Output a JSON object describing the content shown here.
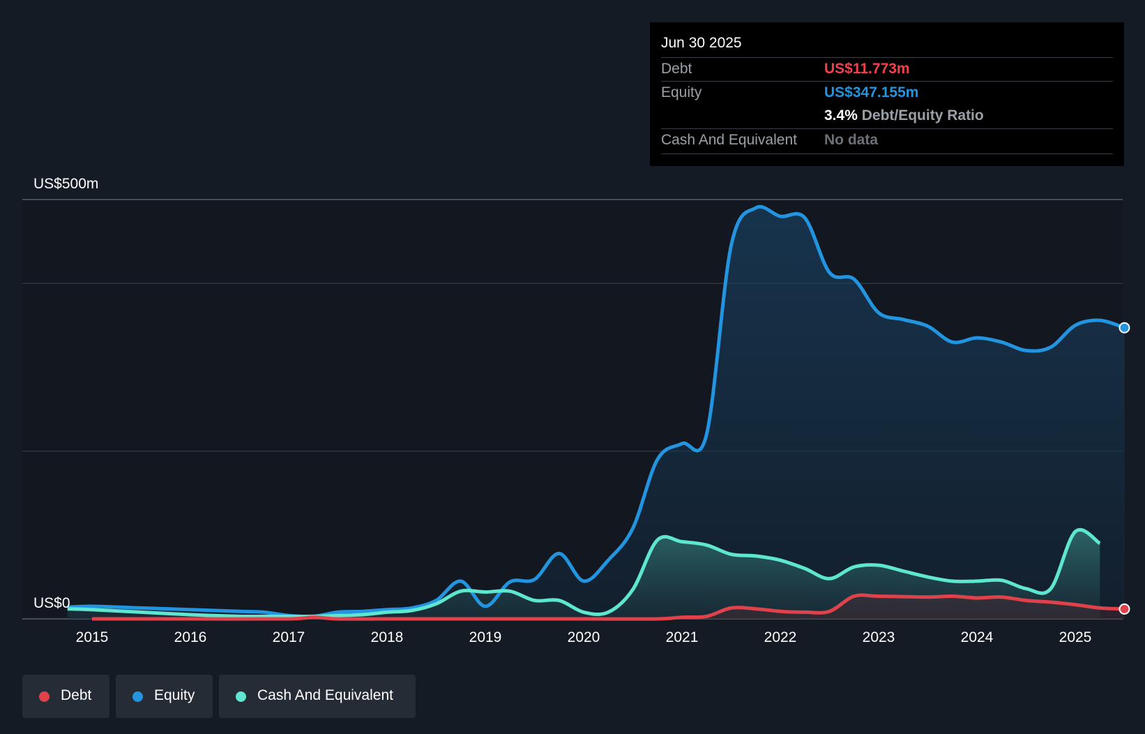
{
  "tooltip": {
    "date": "Jun 30 2025",
    "debt_label": "Debt",
    "debt_value": "US$11.773m",
    "equity_label": "Equity",
    "equity_value": "US$347.155m",
    "ratio_value": "3.4%",
    "ratio_label": "Debt/Equity Ratio",
    "cash_label": "Cash And Equivalent",
    "cash_value": "No data"
  },
  "legend": {
    "debt": "Debt",
    "equity": "Equity",
    "cash": "Cash And Equivalent"
  },
  "colors": {
    "background": "#151b24",
    "debt": "#e0424b",
    "equity": "#2394df",
    "cash": "#5ee6d0",
    "value_debt": "#f0424b",
    "value_equity": "#2394df"
  },
  "chart_data": {
    "type": "area",
    "title": "",
    "xlabel": "",
    "ylabel": "",
    "y_top_label": "US$500m",
    "y_bottom_label": "US$0",
    "ylim": [
      0,
      500
    ],
    "xlim": [
      2014.75,
      2025.5
    ],
    "x_ticks": [
      2015,
      2016,
      2017,
      2018,
      2019,
      2020,
      2021,
      2022,
      2023,
      2024,
      2025
    ],
    "x_tick_labels": [
      "2015",
      "2016",
      "2017",
      "2018",
      "2019",
      "2020",
      "2021",
      "2022",
      "2023",
      "2024",
      "2025"
    ],
    "grid_values": [
      0,
      200,
      400,
      500
    ],
    "legend_position": "bottom-left",
    "series": [
      {
        "name": "Equity",
        "points": [
          [
            2014.75,
            14
          ],
          [
            2015,
            15
          ],
          [
            2015.5,
            13
          ],
          [
            2016,
            11
          ],
          [
            2016.5,
            9
          ],
          [
            2016.75,
            8
          ],
          [
            2017,
            4
          ],
          [
            2017.25,
            3
          ],
          [
            2017.5,
            8
          ],
          [
            2017.75,
            9
          ],
          [
            2018,
            11
          ],
          [
            2018.25,
            13
          ],
          [
            2018.5,
            22
          ],
          [
            2018.75,
            45
          ],
          [
            2019,
            15
          ],
          [
            2019.25,
            44
          ],
          [
            2019.5,
            47
          ],
          [
            2019.75,
            78
          ],
          [
            2020,
            45
          ],
          [
            2020.25,
            70
          ],
          [
            2020.5,
            108
          ],
          [
            2020.75,
            190
          ],
          [
            2021,
            209
          ],
          [
            2021.25,
            220
          ],
          [
            2021.5,
            445
          ],
          [
            2021.75,
            490
          ],
          [
            2022,
            480
          ],
          [
            2022.25,
            478
          ],
          [
            2022.5,
            413
          ],
          [
            2022.75,
            405
          ],
          [
            2023,
            365
          ],
          [
            2023.25,
            357
          ],
          [
            2023.5,
            349
          ],
          [
            2023.75,
            330
          ],
          [
            2024,
            335
          ],
          [
            2024.25,
            330
          ],
          [
            2024.5,
            320
          ],
          [
            2024.75,
            324
          ],
          [
            2025,
            350
          ],
          [
            2025.25,
            356
          ],
          [
            2025.5,
            347.155
          ]
        ]
      },
      {
        "name": "Cash And Equivalent",
        "points": [
          [
            2014.75,
            12
          ],
          [
            2015,
            11
          ],
          [
            2015.5,
            8
          ],
          [
            2016,
            5
          ],
          [
            2016.5,
            3
          ],
          [
            2016.75,
            3
          ],
          [
            2017,
            3
          ],
          [
            2017.25,
            3
          ],
          [
            2017.5,
            4
          ],
          [
            2017.75,
            5
          ],
          [
            2018,
            8
          ],
          [
            2018.25,
            10
          ],
          [
            2018.5,
            18
          ],
          [
            2018.75,
            33
          ],
          [
            2019,
            32
          ],
          [
            2019.25,
            33
          ],
          [
            2019.5,
            22
          ],
          [
            2019.75,
            22
          ],
          [
            2020,
            8
          ],
          [
            2020.25,
            8
          ],
          [
            2020.5,
            35
          ],
          [
            2020.75,
            94
          ],
          [
            2021,
            92
          ],
          [
            2021.25,
            88
          ],
          [
            2021.5,
            77
          ],
          [
            2021.75,
            75
          ],
          [
            2022,
            70
          ],
          [
            2022.25,
            60
          ],
          [
            2022.5,
            48
          ],
          [
            2022.75,
            62
          ],
          [
            2023,
            64
          ],
          [
            2023.25,
            57
          ],
          [
            2023.5,
            50
          ],
          [
            2023.75,
            45
          ],
          [
            2024,
            45
          ],
          [
            2024.25,
            46
          ],
          [
            2024.5,
            36
          ],
          [
            2024.75,
            36
          ],
          [
            2025,
            104
          ],
          [
            2025.25,
            90
          ]
        ]
      },
      {
        "name": "Debt",
        "points": [
          [
            2015,
            0
          ],
          [
            2016,
            0
          ],
          [
            2017,
            0
          ],
          [
            2017.25,
            2
          ],
          [
            2017.5,
            0
          ],
          [
            2018,
            0
          ],
          [
            2019,
            0
          ],
          [
            2020,
            0
          ],
          [
            2020.75,
            0
          ],
          [
            2021,
            2
          ],
          [
            2021.25,
            3
          ],
          [
            2021.5,
            13
          ],
          [
            2021.75,
            12
          ],
          [
            2022,
            9
          ],
          [
            2022.25,
            8
          ],
          [
            2022.5,
            9
          ],
          [
            2022.75,
            27
          ],
          [
            2023,
            27
          ],
          [
            2023.5,
            26
          ],
          [
            2023.75,
            27
          ],
          [
            2024,
            25
          ],
          [
            2024.25,
            26
          ],
          [
            2024.5,
            22
          ],
          [
            2024.75,
            20
          ],
          [
            2025,
            17
          ],
          [
            2025.25,
            13
          ],
          [
            2025.5,
            11.773
          ]
        ]
      }
    ]
  }
}
